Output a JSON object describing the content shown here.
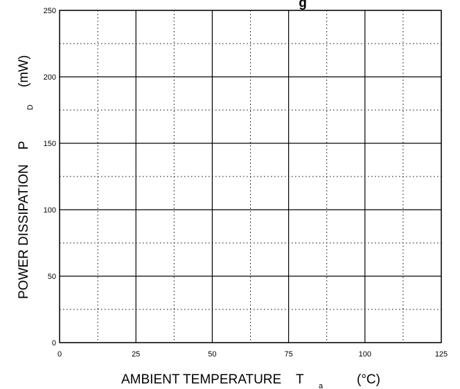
{
  "chart_data": {
    "type": "line",
    "title": "g",
    "xlabel": "AMBIENT TEMPERATURE    T",
    "xlabel_sub": "a",
    "xlabel_unit": "(°C)",
    "ylabel": "POWER DISSIPATION    P",
    "ylabel_sub": "D",
    "ylabel_unit": "(mW)",
    "xlim": [
      0,
      125
    ],
    "ylim": [
      0,
      250
    ],
    "x_ticks": [
      0,
      25,
      50,
      75,
      100,
      125
    ],
    "y_ticks": [
      0,
      50,
      100,
      150,
      200,
      250
    ],
    "x_minor": [
      12.5,
      37.5,
      62.5,
      87.5,
      112.5
    ],
    "y_minor": [
      25,
      75,
      125,
      175,
      225
    ],
    "grid": true,
    "series": []
  }
}
